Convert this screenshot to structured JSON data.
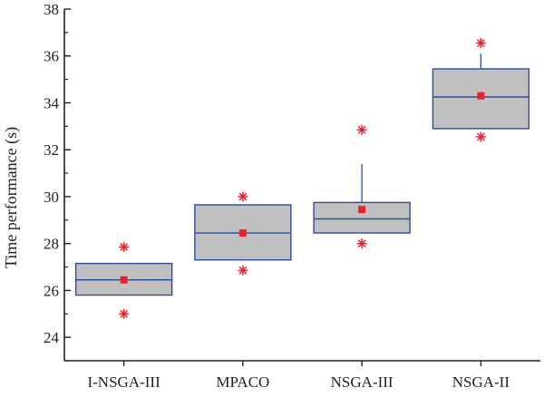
{
  "chart_data": {
    "type": "box",
    "title": "",
    "xlabel": "",
    "ylabel": "Time performance (s)",
    "ylim": [
      23,
      38
    ],
    "yticks": [
      24,
      26,
      28,
      30,
      32,
      34,
      36,
      38
    ],
    "categories": [
      "I-NSGA-III",
      "MPACO",
      "NSGA-III",
      "NSGA-II"
    ],
    "series": [
      {
        "category": "I-NSGA-III",
        "whisker_low": 25.8,
        "q1": 25.8,
        "median": 26.45,
        "q3": 27.15,
        "whisker_high": 27.15,
        "mean": 26.45,
        "outliers": [
          25.0,
          27.85
        ]
      },
      {
        "category": "MPACO",
        "whisker_low": 27.3,
        "q1": 27.3,
        "median": 28.45,
        "q3": 29.65,
        "whisker_high": 29.65,
        "mean": 28.45,
        "outliers": [
          26.85,
          30.0
        ]
      },
      {
        "category": "NSGA-III",
        "whisker_low": 28.45,
        "q1": 28.45,
        "median": 29.05,
        "q3": 29.75,
        "whisker_high": 31.4,
        "mean": 29.45,
        "outliers": [
          28.0,
          32.85
        ]
      },
      {
        "category": "NSGA-II",
        "whisker_low": 32.9,
        "q1": 32.9,
        "median": 34.25,
        "q3": 35.45,
        "whisker_high": 36.1,
        "mean": 34.3,
        "outliers": [
          32.55,
          36.55
        ]
      }
    ],
    "colors": {
      "box_fill": "#c0c0c0",
      "box_stroke": "#2b4ea3",
      "mean_marker": "#e8222a",
      "outlier_marker": "#e8222a",
      "axis": "#222222"
    },
    "grid": false,
    "legend": "none"
  }
}
